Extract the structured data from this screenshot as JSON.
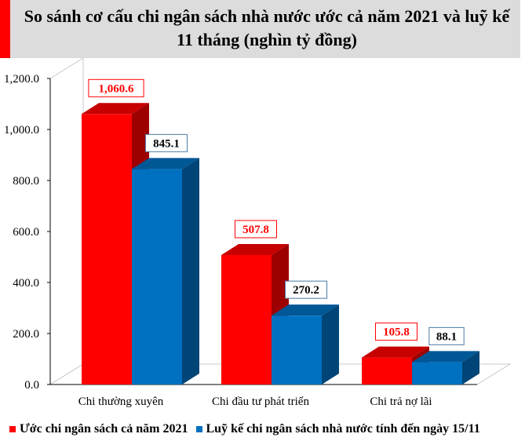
{
  "title": "So sánh cơ cấu chi ngân sách nhà nước ước cả năm 2021 và luỹ kế 11 tháng (nghìn tỷ đồng)",
  "colors": {
    "accent": "#ff0000",
    "title_bg": "#dcdcdc",
    "series_1": "#ff0000",
    "series_2": "#0070c0"
  },
  "chart_data": {
    "type": "bar",
    "categories": [
      "Chi thường xuyên",
      "Chi đầu tư phát triển",
      "Chi trả nợ lãi"
    ],
    "series": [
      {
        "name": "Ước chi ngân sách cả năm 2021",
        "values": [
          1060.6,
          507.8,
          105.8
        ],
        "labels": [
          "1,060.6",
          "507.8",
          "105.8"
        ]
      },
      {
        "name": "Luỹ kế chi ngân sách nhà nước tính đến ngày 15/11",
        "values": [
          845.1,
          270.2,
          88.1
        ],
        "labels": [
          "845.1",
          "270.2",
          "88.1"
        ]
      }
    ],
    "yticks": [
      "0.0",
      "200.0",
      "400.0",
      "600.0",
      "800.0",
      "1,000.0",
      "1,200.0"
    ],
    "ylim": [
      0,
      1200
    ],
    "legend_position": "bottom",
    "grid": false,
    "style": "3d"
  }
}
